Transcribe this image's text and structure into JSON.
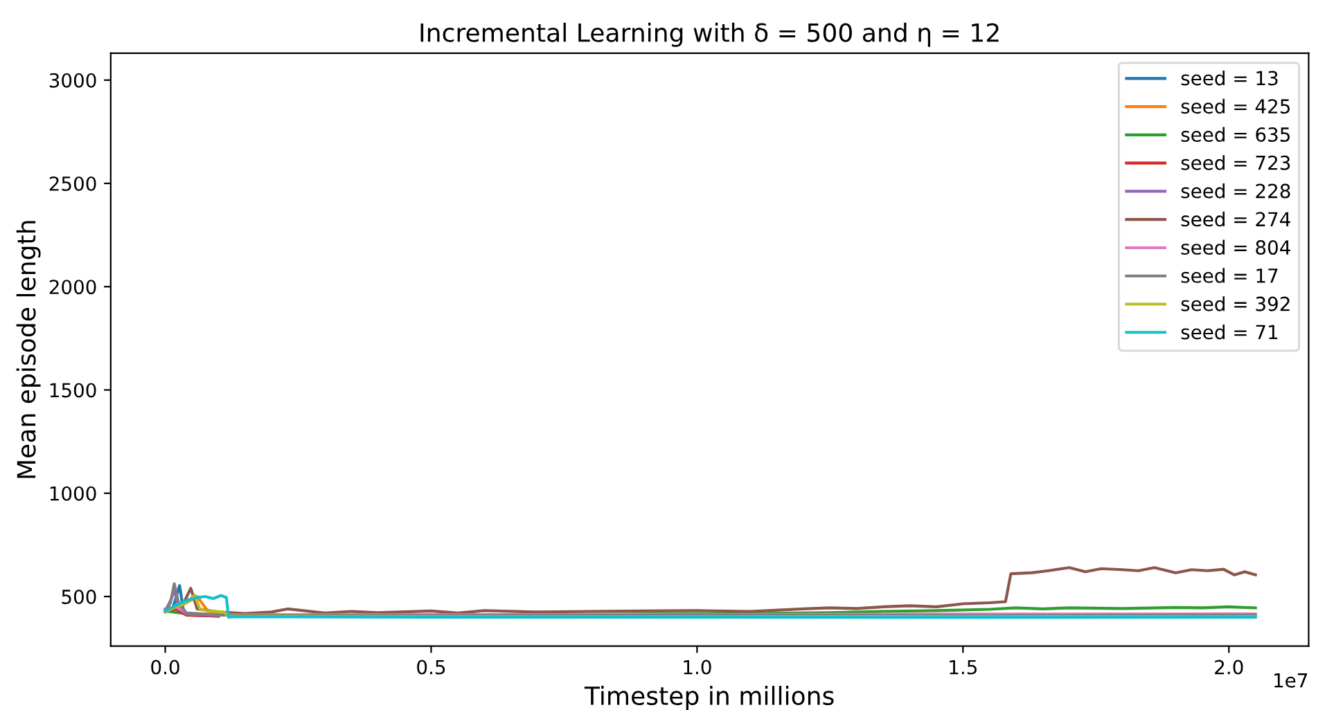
{
  "chart_data": {
    "type": "line",
    "title": "Incremental Learning with δ = 500 and η = 12",
    "xlabel": "Timestep in millions",
    "ylabel": "Mean episode length",
    "xlim": [
      -0.1025,
      2.15
    ],
    "ylim": [
      260,
      3130
    ],
    "xticks": [
      {
        "value": 0,
        "label": "0.0"
      },
      0.5,
      {
        "value": 1,
        "label": "1.0"
      },
      1.5,
      {
        "value": 2,
        "label": "2.0"
      }
    ],
    "yticks": [
      500,
      1000,
      1500,
      2000,
      2500,
      3000
    ],
    "annotations": [
      "1e7"
    ],
    "legend": "top right",
    "grid": false,
    "marker": "none",
    "line_style": "solid",
    "series": [
      {
        "name": "seed = 13",
        "color": "#1f77b4",
        "x": [
          0,
          0.015,
          0.027,
          0.035,
          0.05,
          0.1
        ],
        "values": [
          430,
          450,
          553,
          420,
          410,
          405
        ]
      },
      {
        "name": "seed = 425",
        "color": "#ff7f0e",
        "x": [
          0,
          0.02,
          0.04,
          0.06,
          0.08,
          0.1
        ],
        "values": [
          425,
          440,
          470,
          500,
          430,
          405
        ]
      },
      {
        "name": "seed = 635",
        "color": "#2ca02c",
        "x": [
          0,
          0.03,
          0.06,
          0.1,
          0.3,
          0.6,
          0.9,
          1.1,
          1.25,
          1.35,
          1.45,
          1.55,
          1.6,
          1.65,
          1.7,
          1.8,
          1.9,
          1.95,
          2.0,
          2.05
        ],
        "values": [
          430,
          420,
          412,
          410,
          410,
          412,
          415,
          418,
          422,
          428,
          432,
          438,
          445,
          440,
          445,
          442,
          447,
          445,
          450,
          445
        ]
      },
      {
        "name": "seed = 723",
        "color": "#d62728",
        "x": [
          0,
          0.02,
          0.04,
          0.1
        ],
        "values": [
          430,
          440,
          410,
          405
        ]
      },
      {
        "name": "seed = 228",
        "color": "#9467bd",
        "x": [
          0,
          0.01,
          0.017,
          0.025,
          0.04,
          0.1
        ],
        "values": [
          430,
          480,
          530,
          450,
          415,
          408
        ]
      },
      {
        "name": "seed = 274",
        "color": "#8c564b",
        "x": [
          0,
          0.02,
          0.035,
          0.048,
          0.06,
          0.1,
          0.15,
          0.2,
          0.23,
          0.3,
          0.35,
          0.4,
          0.5,
          0.55,
          0.6,
          0.7,
          0.8,
          0.9,
          1.0,
          1.1,
          1.2,
          1.25,
          1.3,
          1.35,
          1.4,
          1.45,
          1.5,
          1.55,
          1.58,
          1.59,
          1.63,
          1.66,
          1.7,
          1.73,
          1.76,
          1.8,
          1.83,
          1.86,
          1.9,
          1.93,
          1.96,
          1.99,
          2.01,
          2.03,
          2.05
        ],
        "values": [
          440,
          450,
          470,
          540,
          440,
          425,
          418,
          425,
          440,
          420,
          428,
          422,
          430,
          420,
          432,
          425,
          428,
          430,
          432,
          428,
          440,
          445,
          442,
          450,
          455,
          450,
          465,
          470,
          475,
          610,
          615,
          625,
          640,
          620,
          635,
          630,
          625,
          640,
          615,
          630,
          625,
          632,
          605,
          620,
          605
        ]
      },
      {
        "name": "seed = 804",
        "color": "#e377c2",
        "x": [
          0,
          0.02,
          0.04,
          0.1,
          0.5,
          1.0,
          1.5,
          2.05
        ],
        "values": [
          440,
          450,
          420,
          412,
          412,
          413,
          415,
          416
        ]
      },
      {
        "name": "seed = 17",
        "color": "#7f7f7f",
        "x": [
          0,
          0.01,
          0.017,
          0.025,
          0.04,
          0.1,
          0.5,
          1.0,
          1.5,
          2.05
        ],
        "values": [
          430,
          470,
          562,
          470,
          420,
          410,
          408,
          410,
          408,
          410
        ]
      },
      {
        "name": "seed = 392",
        "color": "#bcbd22",
        "x": [
          0,
          0.02,
          0.04,
          0.055,
          0.065,
          0.08,
          0.11,
          0.12,
          0.5,
          1.0,
          1.5,
          2.05
        ],
        "values": [
          425,
          450,
          470,
          507,
          440,
          430,
          425,
          405,
          403,
          403,
          402,
          403
        ]
      },
      {
        "name": "seed = 71",
        "color": "#17becf",
        "x": [
          0,
          0.015,
          0.03,
          0.045,
          0.06,
          0.075,
          0.09,
          0.105,
          0.115,
          0.119,
          0.13,
          0.5,
          1.0,
          1.5,
          2.05
        ],
        "values": [
          430,
          450,
          470,
          485,
          495,
          500,
          490,
          505,
          495,
          400,
          402,
          400,
          400,
          399,
          400
        ]
      }
    ]
  }
}
